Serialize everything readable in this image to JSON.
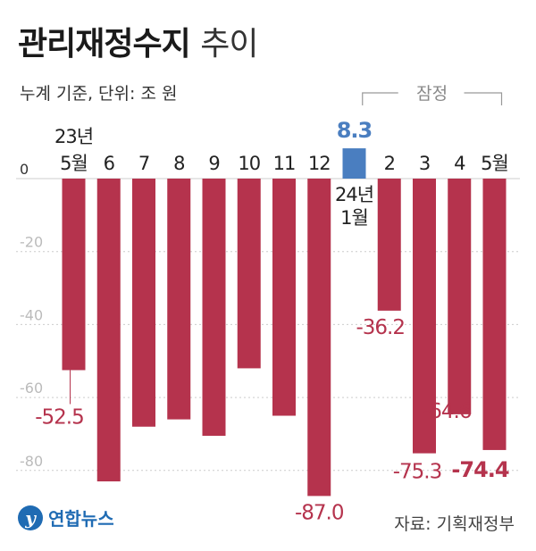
{
  "title_bold": "관리재정수지",
  "title_light": "추이",
  "subtitle": "누계 기준, 단위: 조 원",
  "bracket_label": "잠정",
  "logo_text": "연합뉴스",
  "logo_mark": "y",
  "source": "자료: 기획재정부",
  "colors": {
    "negative": "#b5334d",
    "positive": "#4a7ec0",
    "grid": "#cccccc",
    "axis_text": "#bbbbbb"
  },
  "chart_data": {
    "type": "bar",
    "categories": [
      "23년 5월",
      "6",
      "7",
      "8",
      "9",
      "10",
      "11",
      "12",
      "24년 1월",
      "2",
      "3",
      "4",
      "5월"
    ],
    "category_lines": [
      [
        "23년",
        "5월"
      ],
      [
        "6"
      ],
      [
        "7"
      ],
      [
        "8"
      ],
      [
        "9"
      ],
      [
        "10"
      ],
      [
        "11"
      ],
      [
        "12"
      ],
      [
        "24년",
        "1월"
      ],
      [
        "2"
      ],
      [
        "3"
      ],
      [
        "4"
      ],
      [
        "5월"
      ]
    ],
    "values": [
      -52.5,
      -83.0,
      -68.0,
      -66.0,
      -70.5,
      -52.0,
      -65.0,
      -87.0,
      8.3,
      -36.2,
      -75.3,
      -64.6,
      -74.4
    ],
    "data_labels": [
      "-52.5",
      null,
      null,
      null,
      null,
      null,
      null,
      "-87.0",
      "8.3",
      "-36.2",
      "-75.3",
      "-64.6",
      "-74.4"
    ],
    "y_ticks": [
      0,
      -20,
      -40,
      -60,
      -80
    ],
    "ylim": [
      -90,
      10
    ],
    "grid": true,
    "provisional_range": [
      "2",
      "5월"
    ]
  }
}
